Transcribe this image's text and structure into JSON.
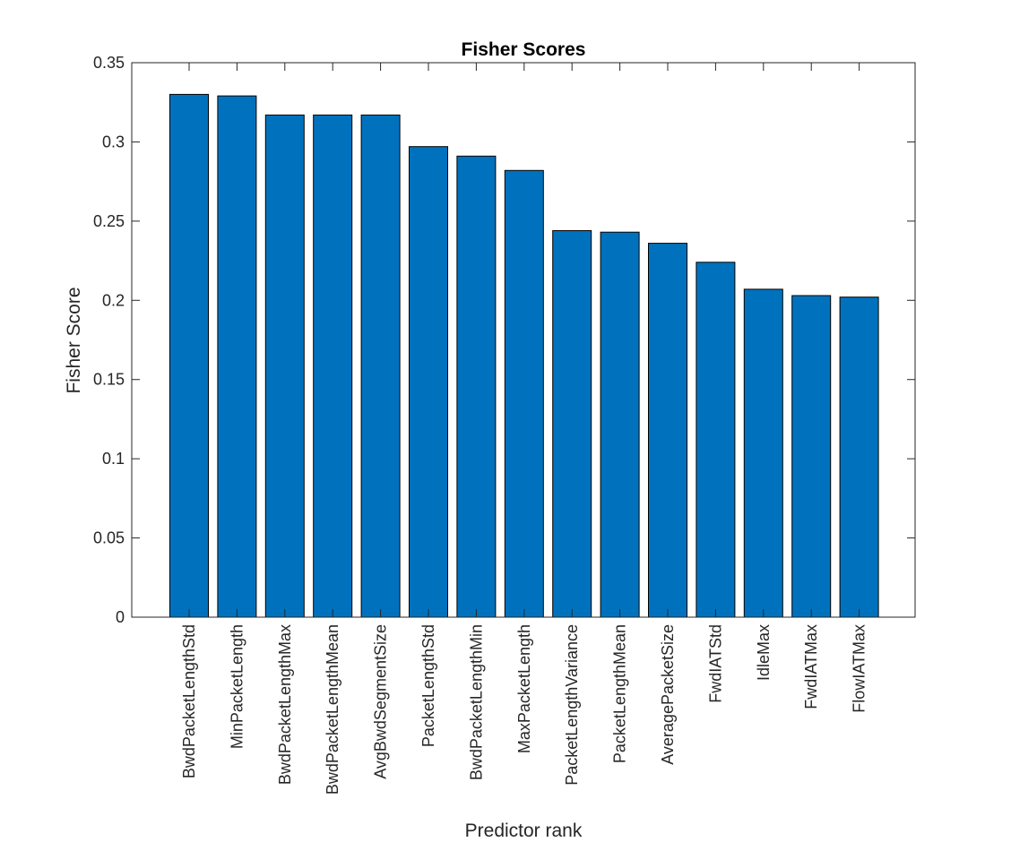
{
  "chart_data": {
    "type": "bar",
    "title": "Fisher Scores",
    "xlabel": "Predictor rank",
    "ylabel": "Fisher Score",
    "ylim": [
      0,
      0.35
    ],
    "yticks": [
      "0",
      "0.05",
      "0.1",
      "0.15",
      "0.2",
      "0.25",
      "0.3",
      "0.35"
    ],
    "grid": false,
    "bar_color": "#0072BD",
    "categories": [
      "BwdPacketLengthStd",
      "MinPacketLength",
      "BwdPacketLengthMax",
      "BwdPacketLengthMean",
      "AvgBwdSegmentSize",
      "PacketLengthStd",
      "BwdPacketLengthMin",
      "MaxPacketLength",
      "PacketLengthVariance",
      "PacketLengthMean",
      "AveragePacketSize",
      "FwdIATStd",
      "IdleMax",
      "FwdIATMax",
      "FlowIATMax"
    ],
    "values": [
      0.33,
      0.329,
      0.317,
      0.317,
      0.317,
      0.297,
      0.291,
      0.282,
      0.244,
      0.243,
      0.236,
      0.224,
      0.207,
      0.203,
      0.202
    ]
  }
}
